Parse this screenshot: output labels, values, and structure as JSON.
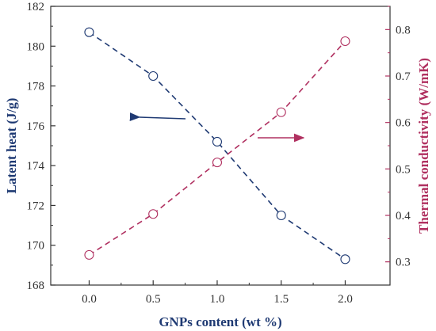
{
  "chart_data": {
    "type": "line",
    "xlabel": "GNPs content (wt %)",
    "x": [
      0.0,
      0.5,
      1.0,
      1.5,
      2.0
    ],
    "x_ticks": [
      "0.0",
      "0.5",
      "1.0",
      "1.5",
      "2.0"
    ],
    "xlim": [
      -0.3,
      2.35
    ],
    "grid": false,
    "series": [
      {
        "axis": "left",
        "values": [
          180.7,
          178.5,
          175.2,
          171.5,
          169.3
        ],
        "color": "#1f3a73",
        "marker": "open-circle",
        "line": "dashed"
      },
      {
        "axis": "right",
        "values": [
          0.315,
          0.403,
          0.514,
          0.622,
          0.775
        ],
        "color": "#b03060",
        "marker": "open-circle",
        "line": "dashed"
      }
    ],
    "y_left": {
      "label": "Latent heat (J/g)",
      "ylim": [
        168,
        182
      ],
      "ticks": [
        "168",
        "170",
        "172",
        "174",
        "176",
        "178",
        "180",
        "182"
      ],
      "color": "#1f3a73"
    },
    "y_right": {
      "label": "Thermal conductivity (W/mK)",
      "ylim": [
        0.25,
        0.85
      ],
      "ticks": [
        "0.3",
        "0.4",
        "0.5",
        "0.6",
        "0.7",
        "0.8"
      ],
      "color": "#b03060"
    },
    "annotations": [
      {
        "type": "arrow",
        "direction": "left",
        "points_to": "left-axis",
        "color": "#1f3a73"
      },
      {
        "type": "arrow",
        "direction": "right",
        "points_to": "right-axis",
        "color": "#b03060"
      }
    ]
  }
}
